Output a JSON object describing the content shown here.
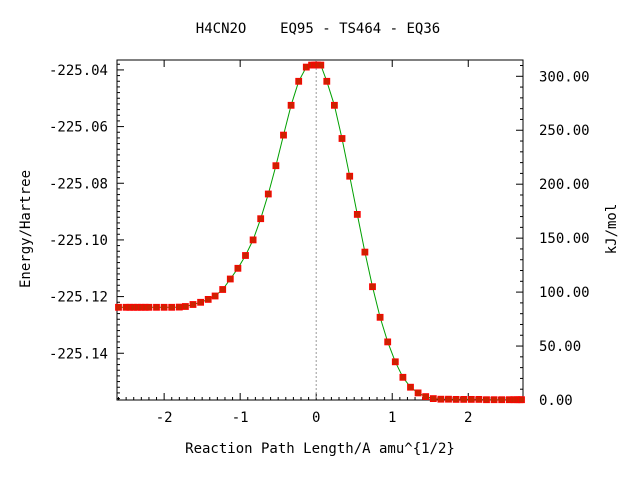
{
  "chart_data": {
    "type": "line",
    "title": "H4CN2O    EQ95 - TS464 - EQ36",
    "xlabel": "Reaction Path Length/A amu^{1/2}",
    "ylabel": "Energy/Hartree",
    "y2label": "kJ/mol",
    "xlim": [
      -2.62,
      2.72
    ],
    "ylim": [
      -225.1565,
      -225.0365
    ],
    "y2lim": [
      0.0,
      315.1
    ],
    "x_ticks": [
      -2,
      -1,
      0,
      1,
      2
    ],
    "x_tick_labels": [
      "-2",
      "-1",
      "0",
      "1",
      "2"
    ],
    "y_ticks": [
      -225.04,
      -225.06,
      -225.08,
      -225.1,
      -225.12,
      -225.14
    ],
    "y_tick_labels": [
      "-225.04",
      "-225.06",
      "-225.08",
      "-225.10",
      "-225.12",
      "-225.14"
    ],
    "y2_ticks": [
      300,
      250,
      200,
      150,
      100,
      50,
      0
    ],
    "y2_tick_labels": [
      "300.00",
      "250.00",
      "200.00",
      "150.00",
      "100.00",
      "50.00",
      "0.00"
    ],
    "ts_marker_x": 0.0,
    "line_color": "#00a000",
    "marker_color": "#cc2200",
    "marker_edge_color": "#ff0000",
    "ts_line_color": "#999999",
    "series": [
      {
        "x": [
          -2.6,
          -2.5,
          -2.45,
          -2.4,
          -2.35,
          -2.3,
          -2.25,
          -2.2,
          -2.1,
          -2.0,
          -1.9,
          -1.8,
          -1.72,
          -1.62,
          -1.52,
          -1.42,
          -1.33,
          -1.23,
          -1.13,
          -1.03,
          -0.93,
          -0.83,
          -0.73,
          -0.63,
          -0.53,
          -0.43,
          -0.33,
          -0.23,
          -0.13,
          -0.06,
          -0.02,
          0.0,
          0.02,
          0.06,
          0.14,
          0.24,
          0.34,
          0.44,
          0.54,
          0.64,
          0.74,
          0.84,
          0.94,
          1.04,
          1.14,
          1.24,
          1.34,
          1.44,
          1.54,
          1.64,
          1.74,
          1.84,
          1.94,
          2.04,
          2.14,
          2.24,
          2.34,
          2.44,
          2.54,
          2.6,
          2.64,
          2.68,
          2.7
        ],
        "y": [
          -225.1238,
          -225.1238,
          -225.1238,
          -225.1238,
          -225.1238,
          -225.1238,
          -225.1238,
          -225.1238,
          -225.1238,
          -225.1238,
          -225.1238,
          -225.1237,
          -225.1235,
          -225.1228,
          -225.122,
          -225.121,
          -225.1198,
          -225.1175,
          -225.1138,
          -225.11,
          -225.1055,
          -225.1,
          -225.0925,
          -225.0838,
          -225.0738,
          -225.063,
          -225.0525,
          -225.044,
          -225.039,
          -225.0383,
          -225.0383,
          -225.0383,
          -225.0383,
          -225.0383,
          -225.044,
          -225.0525,
          -225.0642,
          -225.0775,
          -225.091,
          -225.1043,
          -225.1165,
          -225.1273,
          -225.136,
          -225.143,
          -225.1485,
          -225.152,
          -225.154,
          -225.1553,
          -225.156,
          -225.1562,
          -225.1562,
          -225.1563,
          -225.1563,
          -225.1563,
          -225.1563,
          -225.1564,
          -225.1564,
          -225.1564,
          -225.1564,
          -225.1564,
          -225.1564,
          -225.1564,
          -225.1564
        ]
      }
    ]
  }
}
